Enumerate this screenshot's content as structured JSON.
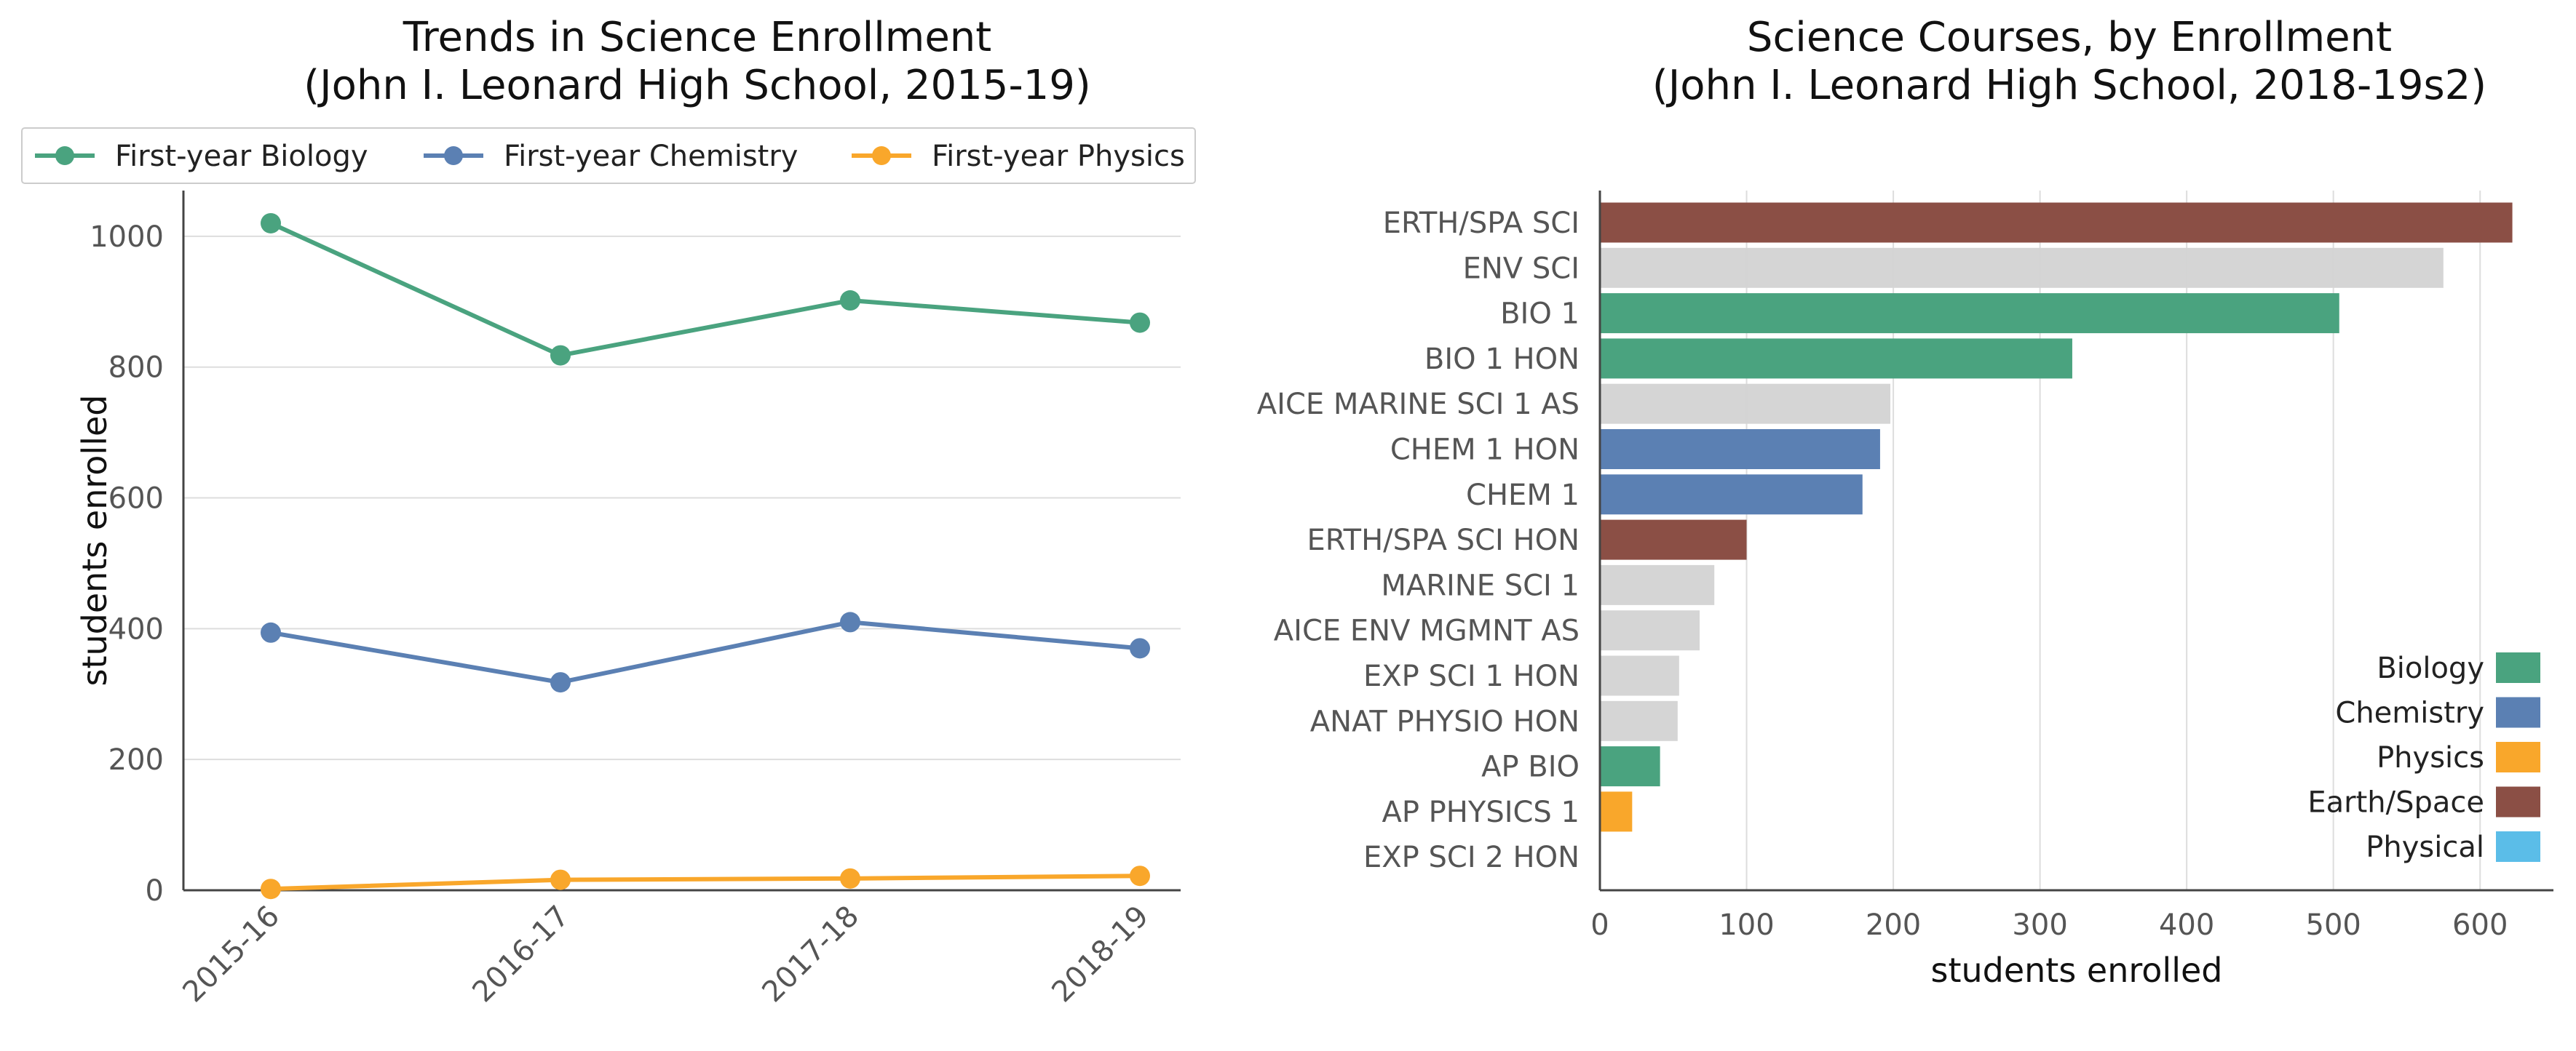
{
  "chart_data": [
    {
      "type": "line",
      "title_line1": "Trends in Science Enrollment",
      "title_line2": "(John I. Leonard High School, 2015-19)",
      "ylabel": "students enrolled",
      "xlabel": "",
      "categories": [
        "2015-16",
        "2016-17",
        "2017-18",
        "2018-19"
      ],
      "ylim": [
        0,
        1070
      ],
      "yticks": [
        0,
        200,
        400,
        600,
        800,
        1000
      ],
      "grid": "horizontal",
      "legend_position": "top",
      "series": [
        {
          "name": "First-year Biology",
          "color": "#4aa37f",
          "values": [
            1020,
            818,
            902,
            868
          ]
        },
        {
          "name": "First-year Chemistry",
          "color": "#5b80b3",
          "values": [
            394,
            318,
            410,
            370
          ]
        },
        {
          "name": "First-year Physics",
          "color": "#f9a72b",
          "values": [
            2,
            16,
            18,
            22
          ]
        }
      ]
    },
    {
      "type": "bar",
      "orientation": "horizontal",
      "title_line1": "Science Courses, by Enrollment",
      "title_line2": "(John I. Leonard High School, 2018-19s2)",
      "xlabel": "students enrolled",
      "xlim": [
        0,
        650
      ],
      "xticks": [
        0,
        100,
        200,
        300,
        400,
        500,
        600
      ],
      "grid": "vertical",
      "legend_position": "lower-right",
      "categories": [
        "ERTH/SPA SCI",
        "ENV SCI",
        "BIO 1",
        "BIO 1 HON",
        "AICE MARINE SCI 1 AS",
        "CHEM 1 HON",
        "CHEM 1",
        "ERTH/SPA SCI HON",
        "MARINE SCI 1",
        "AICE ENV MGMNT AS",
        "EXP SCI 1 HON",
        "ANAT PHYSIO HON",
        "AP BIO",
        "AP PHYSICS 1",
        "EXP SCI 2 HON"
      ],
      "values": [
        622,
        575,
        504,
        322,
        198,
        191,
        179,
        100,
        78,
        68,
        54,
        53,
        41,
        22,
        0
      ],
      "bar_groups": [
        "Earth/Space",
        "Other",
        "Biology",
        "Biology",
        "Other",
        "Chemistry",
        "Chemistry",
        "Earth/Space",
        "Other",
        "Other",
        "Other",
        "Other",
        "Biology",
        "Physics",
        "Other"
      ],
      "legend": [
        {
          "name": "Biology",
          "color": "#4aa37f"
        },
        {
          "name": "Chemistry",
          "color": "#5b80b3"
        },
        {
          "name": "Physics",
          "color": "#f9a72b"
        },
        {
          "name": "Earth/Space",
          "color": "#8b4f45"
        },
        {
          "name": "Physical",
          "color": "#5bbde8"
        }
      ],
      "other_color": "#d3d3d3"
    }
  ]
}
